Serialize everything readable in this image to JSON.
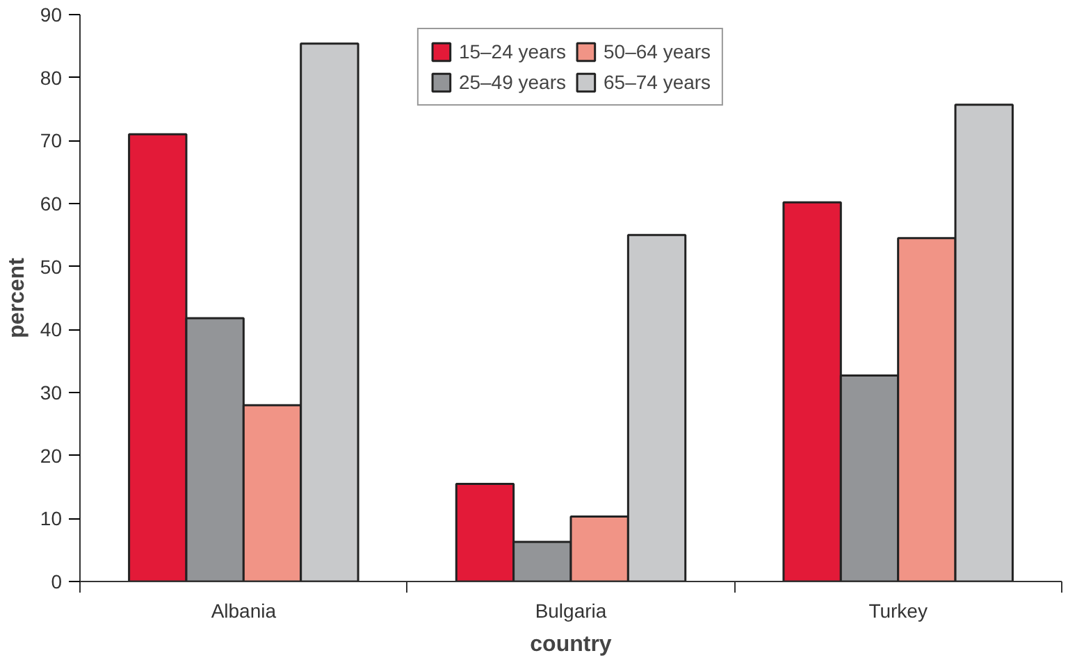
{
  "chart_data": {
    "type": "bar",
    "xlabel": "country",
    "ylabel": "percent",
    "categories": [
      "Albania",
      "Bulgaria",
      "Turkey"
    ],
    "series": [
      {
        "name": "15–24 years",
        "color": "#e31a38",
        "values": [
          71,
          15.5,
          60.2
        ]
      },
      {
        "name": "25–49 years",
        "color": "#939598",
        "values": [
          41.8,
          6.3,
          32.7
        ]
      },
      {
        "name": "50–64 years",
        "color": "#f19486",
        "values": [
          28,
          10.3,
          54.5
        ]
      },
      {
        "name": "65–74 years",
        "color": "#c8c9cb",
        "values": [
          85.4,
          55,
          75.7
        ]
      }
    ],
    "ylim": [
      0,
      90
    ],
    "yticks": [
      0,
      10,
      20,
      30,
      40,
      50,
      60,
      70,
      80,
      90
    ],
    "grid": false,
    "legend": "top"
  }
}
